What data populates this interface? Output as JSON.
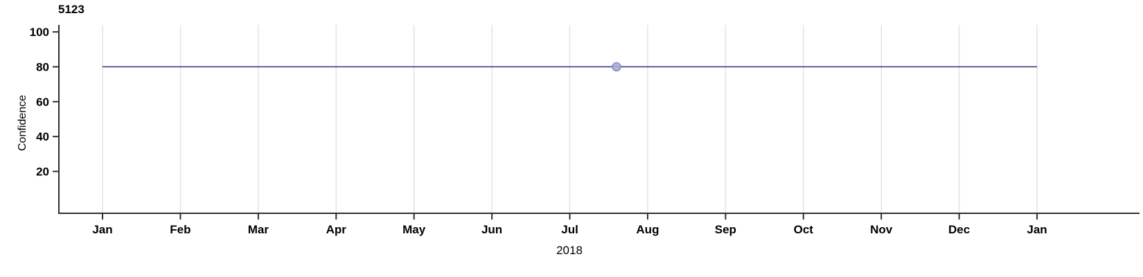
{
  "chart_data": {
    "type": "line",
    "title": "5123",
    "xlabel": "2018",
    "ylabel": "Confidence",
    "x_tick_labels": [
      "Jan",
      "Feb",
      "Mar",
      "Apr",
      "May",
      "Jun",
      "Jul",
      "Aug",
      "Sep",
      "Oct",
      "Nov",
      "Dec",
      "Jan"
    ],
    "y_ticks": [
      100,
      80,
      60,
      40,
      20
    ],
    "ylim": [
      -4,
      104
    ],
    "grid": "vertical-only",
    "legend": "none",
    "series": [
      {
        "name": "confidence",
        "color": "#3b3e7e",
        "points": [
          {
            "x_month": 0,
            "y": 80
          },
          {
            "x_month": 12,
            "y": 80
          }
        ]
      }
    ],
    "markers": [
      {
        "x_month": 6.6,
        "y": 80,
        "fill": "#a9aed4",
        "stroke": "#858dbd",
        "radius": 6
      }
    ],
    "colors": {
      "gridline": "#e3e3e3",
      "axis": "#2f2f2f",
      "text": "#000000"
    }
  }
}
